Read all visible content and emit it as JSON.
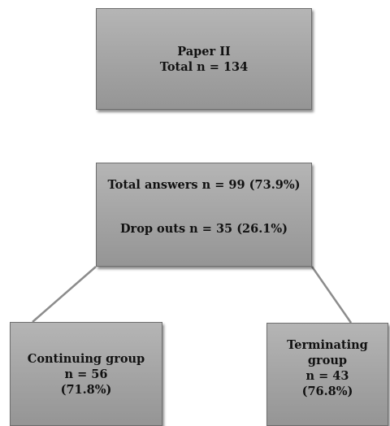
{
  "top_box": {
    "line1": "Paper II",
    "line2": "Total n = 134"
  },
  "middle_box": {
    "line1": "Total answers n = 99 (73.9%)",
    "line2": "Drop outs n = 35 (26.1%)"
  },
  "left_box": {
    "line1": "Continuing group",
    "line2": "n =  56",
    "line3": "(71.8%)"
  },
  "right_box": {
    "line1": "Terminating",
    "line2": "group",
    "line3": "n = 43",
    "line4": "(76.8%)"
  },
  "colors": {
    "box_fill": "#a8a8a8",
    "box_border": "#6e6e6e",
    "connector": "#8c8c8c",
    "text": "#111111"
  }
}
